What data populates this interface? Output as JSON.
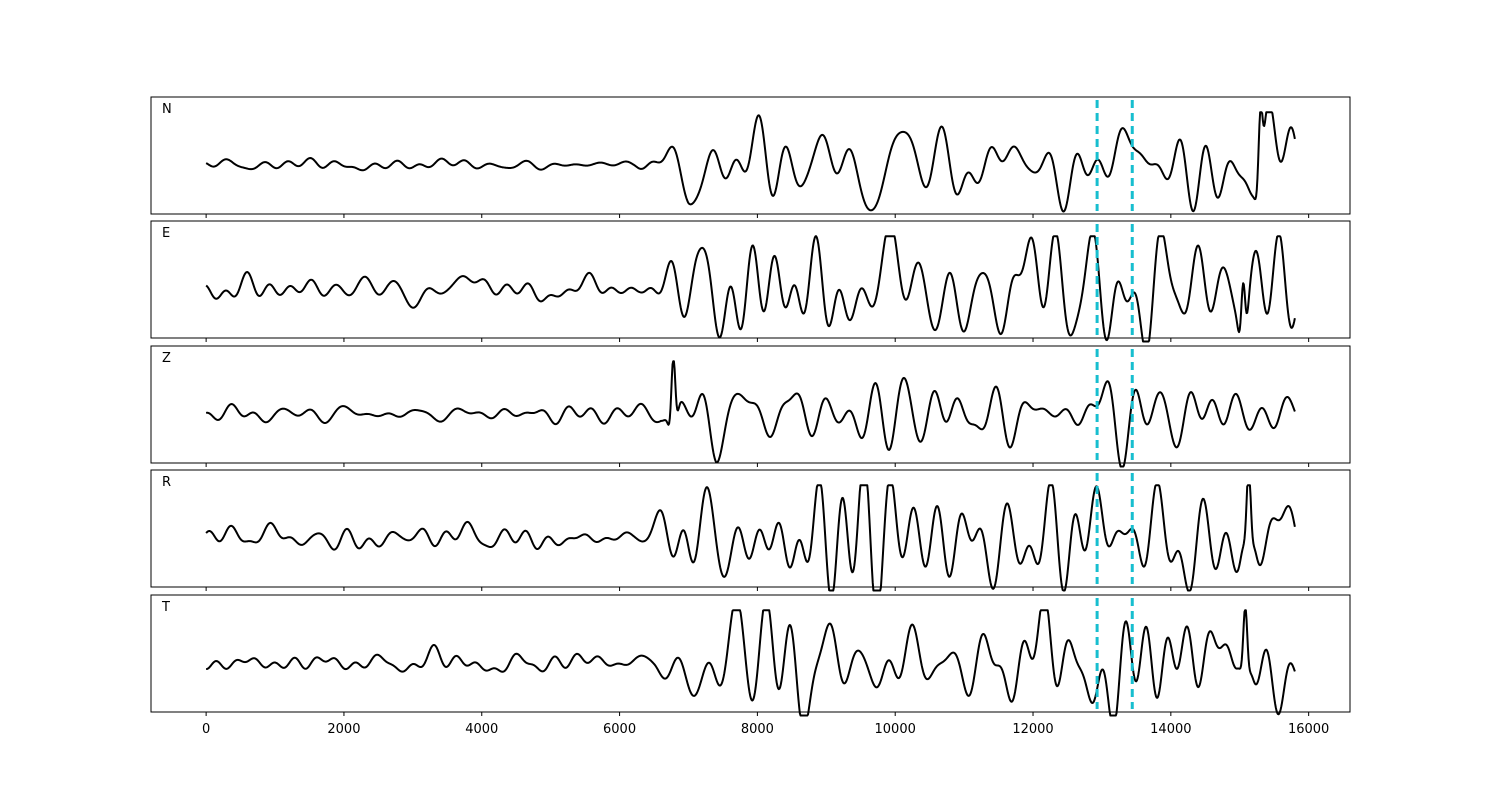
{
  "chart_data": {
    "type": "line",
    "xlim": [
      -800,
      16600
    ],
    "x_ticks": [
      0,
      2000,
      4000,
      6000,
      8000,
      10000,
      12000,
      14000,
      16000
    ],
    "x_tick_labels": [
      "0",
      "2000",
      "4000",
      "6000",
      "8000",
      "10000",
      "12000",
      "14000",
      "16000"
    ],
    "grid": false,
    "markers": {
      "color": "#17becf",
      "x": [
        12930,
        13440
      ]
    },
    "trace_color": "#000000",
    "series": [
      {
        "name": "N",
        "x_start": 0,
        "x_end": 15800,
        "noise_amp": 0.05,
        "signal_amp": 0.35,
        "onset": 6200,
        "peak": [
          15300,
          0.95
        ]
      },
      {
        "name": "E",
        "x_start": 0,
        "x_end": 15800,
        "noise_amp": 0.1,
        "signal_amp": 0.4,
        "onset": 6300,
        "peak": [
          15050,
          0.85
        ]
      },
      {
        "name": "Z",
        "x_start": 0,
        "x_end": 15800,
        "noise_amp": 0.06,
        "signal_amp": 0.32,
        "onset": 6600,
        "peak": [
          6780,
          1.0
        ]
      },
      {
        "name": "R",
        "x_start": 0,
        "x_end": 15800,
        "noise_amp": 0.09,
        "signal_amp": 0.4,
        "onset": 6200,
        "peak": [
          15130,
          0.95
        ]
      },
      {
        "name": "T",
        "x_start": 0,
        "x_end": 15800,
        "noise_amp": 0.08,
        "signal_amp": 0.45,
        "onset": 6500,
        "peak": [
          15080,
          0.85
        ]
      }
    ]
  }
}
